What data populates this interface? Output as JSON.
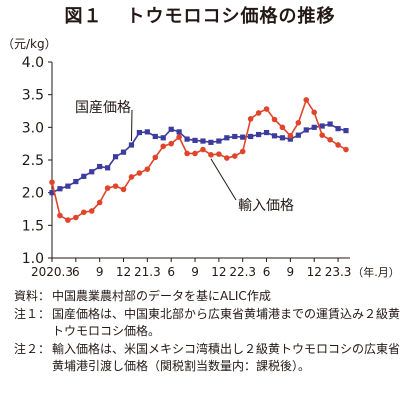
{
  "figure": {
    "number": "図１",
    "title": "トウモロコシ価格の推移"
  },
  "chart_data": {
    "type": "line",
    "unit_label": "（元/kg）",
    "x_unit_label": "（年.月）",
    "x_ticks": [
      "2020.3",
      "6",
      "9",
      "12",
      "21.3",
      "6",
      "9",
      "12",
      "22.3",
      "6",
      "9",
      "12",
      "23.3"
    ],
    "ylim": [
      1.0,
      4.0
    ],
    "y_ticks": [
      "1.0",
      "1.5",
      "2.0",
      "2.5",
      "3.0",
      "3.5",
      "4.0"
    ],
    "grid": false,
    "series": [
      {
        "name": "国産価格",
        "color": "#3c3c9c",
        "marker": "square",
        "values": [
          2.0,
          2.06,
          2.1,
          2.17,
          2.25,
          2.32,
          2.4,
          2.38,
          2.55,
          2.62,
          2.73,
          2.92,
          2.93,
          2.86,
          2.84,
          2.97,
          2.93,
          2.82,
          2.8,
          2.79,
          2.77,
          2.79,
          2.84,
          2.86,
          2.85,
          2.86,
          2.89,
          2.92,
          2.87,
          2.84,
          2.82,
          2.88,
          2.96,
          3.0,
          3.02,
          3.05,
          2.98,
          2.95
        ]
      },
      {
        "name": "輸入価格",
        "color": "#e0452b",
        "marker": "circle",
        "values": [
          2.16,
          1.65,
          1.58,
          1.62,
          1.7,
          1.72,
          1.85,
          2.07,
          2.1,
          2.05,
          2.24,
          2.3,
          2.36,
          2.54,
          2.71,
          2.75,
          2.85,
          2.6,
          2.6,
          2.66,
          2.58,
          2.59,
          2.53,
          2.56,
          2.63,
          3.13,
          3.22,
          3.28,
          3.12,
          3.0,
          2.87,
          3.07,
          3.42,
          3.23,
          2.88,
          2.81,
          2.73,
          2.66
        ]
      }
    ]
  },
  "notes": [
    {
      "label": "資料：",
      "text": "中国農業農村部のデータを基にALIC作成"
    },
    {
      "label": "注１：",
      "text": "国産価格は、中国東北部から広東省黄埔港までの運賃込み２級黄トウモロコシ価格。"
    },
    {
      "label": "注２：",
      "text": "輸入価格は、米国メキシコ湾積出し２級黄トウモロコシの広東省黄埔港引渡し価格（関税割当数量内：課税後）。"
    }
  ]
}
